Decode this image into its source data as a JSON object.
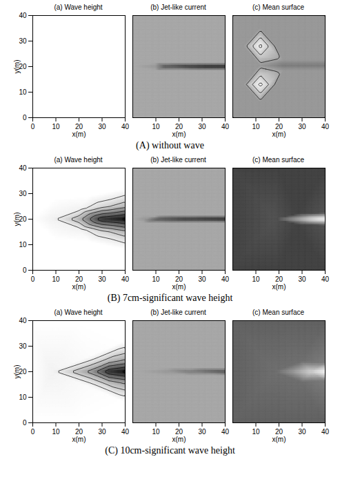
{
  "chart_data": [
    {
      "group": "(A) without wave",
      "title": "(a) Wave height",
      "type": "contour",
      "x_label": "x(m)",
      "y_label": "y(m)",
      "xlim": [
        0,
        40
      ],
      "ylim": [
        0,
        40
      ],
      "xticks": [
        0,
        10,
        20,
        30,
        40
      ],
      "yticks": [
        0,
        10,
        20,
        30,
        40
      ],
      "zlim": [
        0,
        1
      ],
      "samples": []
    },
    {
      "group": "(A) without wave",
      "title": "(b) Jet-like current",
      "type": "heatmap",
      "x_label": "x(m)",
      "tick_labels": "x",
      "xlim": [
        0,
        40
      ],
      "ylim": [
        0,
        40
      ],
      "xticks": [
        10,
        20,
        30,
        40
      ],
      "zlim": [
        0,
        1
      ],
      "samples": [
        [
          0,
          0,
          0.45
        ],
        [
          20,
          0,
          0.45
        ],
        [
          40,
          0,
          0.45
        ],
        [
          0,
          20,
          0.45
        ],
        [
          0,
          40,
          0.45
        ],
        [
          20,
          40,
          0.45
        ],
        [
          40,
          40,
          0.45
        ],
        [
          10,
          18.5,
          0.45
        ],
        [
          10,
          20,
          0.5
        ],
        [
          10,
          21.5,
          0.45
        ],
        [
          15,
          18.5,
          0.45
        ],
        [
          15,
          20,
          0.75
        ],
        [
          15,
          21.5,
          0.45
        ],
        [
          25,
          18.5,
          0.45
        ],
        [
          25,
          20,
          0.85
        ],
        [
          25,
          21.5,
          0.45
        ],
        [
          35,
          18.5,
          0.45
        ],
        [
          35,
          20,
          0.9
        ],
        [
          35,
          21.5,
          0.45
        ],
        [
          40,
          18.5,
          0.45
        ],
        [
          40,
          20,
          0.9
        ],
        [
          40,
          21.5,
          0.45
        ]
      ]
    },
    {
      "group": "(A) without wave",
      "title": "(c) Mean surface",
      "type": "contour",
      "x_label": "x(m)",
      "tick_labels": "x",
      "xlim": [
        0,
        40
      ],
      "ylim": [
        0,
        40
      ],
      "xticks": [
        10,
        20,
        30,
        40
      ],
      "zlim": [
        0,
        1
      ],
      "samples": [
        [
          0,
          0,
          0.5
        ],
        [
          20,
          0,
          0.5
        ],
        [
          40,
          0,
          0.5
        ],
        [
          0,
          40,
          0.5
        ],
        [
          20,
          40,
          0.5
        ],
        [
          40,
          40,
          0.5
        ],
        [
          0,
          20,
          0.5
        ],
        [
          40,
          10,
          0.5
        ],
        [
          40,
          30,
          0.5
        ],
        [
          12,
          28,
          0.1
        ],
        [
          15.5,
          28,
          0.3
        ],
        [
          8.5,
          28,
          0.3
        ],
        [
          12,
          31.5,
          0.3
        ],
        [
          12,
          24.5,
          0.3
        ],
        [
          19,
          28,
          0.5
        ],
        [
          5,
          28,
          0.5
        ],
        [
          12,
          35,
          0.5
        ],
        [
          12,
          13,
          0.1
        ],
        [
          15.5,
          13,
          0.3
        ],
        [
          8.5,
          13,
          0.3
        ],
        [
          12,
          16.5,
          0.3
        ],
        [
          12,
          9.5,
          0.3
        ],
        [
          19,
          13,
          0.5
        ],
        [
          5,
          13,
          0.5
        ],
        [
          12,
          6,
          0.5
        ],
        [
          12,
          20.5,
          0.5
        ],
        [
          22,
          20.5,
          0.6
        ],
        [
          40,
          20.5,
          0.6
        ],
        [
          22,
          18.5,
          0.5
        ],
        [
          22,
          22.5,
          0.5
        ],
        [
          40,
          18.5,
          0.5
        ],
        [
          40,
          22.5,
          0.5
        ]
      ]
    },
    {
      "group": "(B) 7cm-significant wave height",
      "title": "(a) Wave height",
      "type": "contour",
      "x_label": "x(m)",
      "y_label": "y(m)",
      "xlim": [
        0,
        40
      ],
      "ylim": [
        0,
        40
      ],
      "xticks": [
        0,
        10,
        20,
        30,
        40
      ],
      "yticks": [
        0,
        10,
        20,
        30,
        40
      ],
      "zlim": [
        0,
        1
      ],
      "samples": [
        [
          0,
          0,
          0
        ],
        [
          20,
          0,
          0
        ],
        [
          40,
          0,
          0
        ],
        [
          0,
          40,
          0
        ],
        [
          20,
          40,
          0
        ],
        [
          40,
          40,
          0
        ],
        [
          0,
          20,
          0
        ],
        [
          10,
          12,
          0
        ],
        [
          10,
          28,
          0
        ],
        [
          40,
          8,
          0
        ],
        [
          40,
          32,
          0
        ],
        [
          8,
          20,
          0.1
        ],
        [
          20,
          16,
          0.1
        ],
        [
          20,
          20,
          0.4
        ],
        [
          20,
          24,
          0.1
        ],
        [
          30,
          15,
          0.25
        ],
        [
          30,
          20,
          0.85
        ],
        [
          30,
          25,
          0.25
        ],
        [
          40,
          15,
          0.4
        ],
        [
          40,
          20,
          0.95
        ],
        [
          40,
          25,
          0.4
        ],
        [
          25,
          11,
          0
        ],
        [
          25,
          29,
          0
        ]
      ]
    },
    {
      "group": "(B) 7cm-significant wave height",
      "title": "(b) Jet-like current",
      "type": "heatmap",
      "x_label": "x(m)",
      "tick_labels": "x",
      "xlim": [
        0,
        40
      ],
      "ylim": [
        0,
        40
      ],
      "xticks": [
        10,
        20,
        30,
        40
      ],
      "zlim": [
        0,
        1
      ],
      "samples": [
        [
          0,
          0,
          0.45
        ],
        [
          20,
          0,
          0.45
        ],
        [
          40,
          0,
          0.45
        ],
        [
          0,
          20,
          0.45
        ],
        [
          0,
          40,
          0.45
        ],
        [
          20,
          40,
          0.45
        ],
        [
          40,
          40,
          0.45
        ],
        [
          5,
          18.5,
          0.45
        ],
        [
          5,
          20,
          0.5
        ],
        [
          5,
          21.5,
          0.45
        ],
        [
          12,
          18.5,
          0.45
        ],
        [
          12,
          20,
          0.75
        ],
        [
          12,
          21.5,
          0.45
        ],
        [
          25,
          18.5,
          0.45
        ],
        [
          25,
          20,
          0.85
        ],
        [
          25,
          21.5,
          0.45
        ],
        [
          40,
          18.5,
          0.45
        ],
        [
          40,
          20,
          0.9
        ],
        [
          40,
          21.5,
          0.45
        ]
      ]
    },
    {
      "group": "(B) 7cm-significant wave height",
      "title": "(c) Mean surface",
      "type": "heatmap",
      "x_label": "x(m)",
      "tick_labels": "x",
      "xlim": [
        0,
        40
      ],
      "ylim": [
        0,
        40
      ],
      "xticks": [
        10,
        20,
        30,
        40
      ],
      "zlim": [
        0,
        1
      ],
      "samples": [
        [
          0,
          0,
          0.8
        ],
        [
          20,
          0,
          0.8
        ],
        [
          40,
          0,
          0.8
        ],
        [
          0,
          20,
          0.8
        ],
        [
          0,
          40,
          0.8
        ],
        [
          20,
          40,
          0.8
        ],
        [
          40,
          40,
          0.8
        ],
        [
          18,
          20,
          0.75
        ],
        [
          28,
          20,
          0.45
        ],
        [
          40,
          20,
          0.1
        ],
        [
          28,
          18,
          0.8
        ],
        [
          28,
          22,
          0.8
        ],
        [
          40,
          17.5,
          0.75
        ],
        [
          40,
          22.5,
          0.75
        ]
      ]
    },
    {
      "group": "(C) 10cm-significant wave height",
      "title": "(a) Wave height",
      "type": "contour",
      "x_label": "x(m)",
      "y_label": "y(m)",
      "xlim": [
        0,
        40
      ],
      "ylim": [
        0,
        40
      ],
      "xticks": [
        0,
        10,
        20,
        30,
        40
      ],
      "yticks": [
        0,
        10,
        20,
        30,
        40
      ],
      "zlim": [
        0,
        1
      ],
      "samples": [
        [
          0,
          0,
          0
        ],
        [
          20,
          0,
          0
        ],
        [
          40,
          0,
          0
        ],
        [
          0,
          40,
          0
        ],
        [
          20,
          40,
          0
        ],
        [
          40,
          40,
          0
        ],
        [
          0,
          20,
          0
        ],
        [
          40,
          8,
          0
        ],
        [
          40,
          32,
          0
        ],
        [
          8,
          20,
          0.1
        ],
        [
          25,
          14,
          0.03
        ],
        [
          25,
          20,
          0.5
        ],
        [
          25,
          26,
          0.03
        ],
        [
          33,
          16,
          0.4
        ],
        [
          33,
          20,
          0.85
        ],
        [
          33,
          24,
          0.4
        ],
        [
          40,
          16,
          0.5
        ],
        [
          40,
          20,
          0.95
        ],
        [
          40,
          24,
          0.5
        ]
      ]
    },
    {
      "group": "(C) 10cm-significant wave height",
      "title": "(b) Jet-like current",
      "type": "heatmap",
      "x_label": "x(m)",
      "tick_labels": "x",
      "xlim": [
        0,
        40
      ],
      "ylim": [
        0,
        40
      ],
      "xticks": [
        10,
        20,
        30,
        40
      ],
      "zlim": [
        0,
        1
      ],
      "samples": [
        [
          0,
          0,
          0.45
        ],
        [
          20,
          0,
          0.45
        ],
        [
          40,
          0,
          0.45
        ],
        [
          0,
          20,
          0.45
        ],
        [
          0,
          40,
          0.45
        ],
        [
          20,
          40,
          0.45
        ],
        [
          40,
          40,
          0.45
        ],
        [
          15,
          18.5,
          0.45
        ],
        [
          15,
          20,
          0.5
        ],
        [
          15,
          21.5,
          0.45
        ],
        [
          25,
          18.5,
          0.45
        ],
        [
          25,
          20,
          0.6
        ],
        [
          25,
          21.5,
          0.45
        ],
        [
          40,
          18.5,
          0.45
        ],
        [
          40,
          20,
          0.75
        ],
        [
          40,
          21.5,
          0.45
        ]
      ]
    },
    {
      "group": "(C) 10cm-significant wave height",
      "title": "(c) Mean surface",
      "type": "heatmap",
      "x_label": "x(m)",
      "tick_labels": "x",
      "xlim": [
        0,
        40
      ],
      "ylim": [
        0,
        40
      ],
      "xticks": [
        10,
        20,
        30,
        40
      ],
      "zlim": [
        0,
        1
      ],
      "samples": [
        [
          0,
          0,
          0.7
        ],
        [
          20,
          0,
          0.7
        ],
        [
          40,
          0,
          0.7
        ],
        [
          0,
          20,
          0.7
        ],
        [
          0,
          40,
          0.7
        ],
        [
          20,
          40,
          0.7
        ],
        [
          40,
          40,
          0.7
        ],
        [
          18,
          20,
          0.65
        ],
        [
          26,
          20,
          0.5
        ],
        [
          34,
          20,
          0.3
        ],
        [
          40,
          20,
          0.1
        ],
        [
          30,
          16,
          0.65
        ],
        [
          30,
          24,
          0.65
        ],
        [
          40,
          16.5,
          0.6
        ],
        [
          40,
          23.5,
          0.6
        ]
      ]
    }
  ]
}
